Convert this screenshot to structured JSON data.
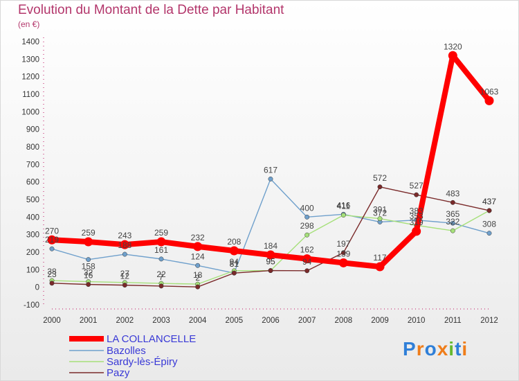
{
  "chart_data": {
    "type": "line",
    "title": "Evolution du Montant de la Dette par Habitant",
    "subtitle": "(en €)",
    "x": [
      "2000",
      "2001",
      "2002",
      "2003",
      "2004",
      "2005",
      "2006",
      "2007",
      "2008",
      "2009",
      "2010",
      "2011",
      "2012"
    ],
    "ylim": [
      -100,
      1400
    ],
    "yticks": [
      -100,
      0,
      100,
      200,
      300,
      400,
      500,
      600,
      700,
      800,
      900,
      1000,
      1100,
      1200,
      1300,
      1400
    ],
    "grid": false,
    "legend": "bottom-left",
    "series": [
      {
        "name": "LA COLLANCELLE",
        "color": "#ff0000",
        "values": [
          270,
          259,
          243,
          259,
          232,
          208,
          184,
          162,
          139,
          117,
          319,
          1320,
          1063
        ]
      },
      {
        "name": "Bazolles",
        "color": "#6fa0cc",
        "values": [
          219,
          158,
          188,
          161,
          124,
          81,
          617,
          400,
          416,
          372,
          383,
          365,
          308
        ]
      },
      {
        "name": "Sardy-lès-Épiry",
        "color": "#a6e07a",
        "values": [
          38,
          32,
          27,
          22,
          18,
          94,
          95,
          298,
          411,
          391,
          353,
          322,
          437
        ]
      },
      {
        "name": "Pazy",
        "color": "#7a2a2a",
        "values": [
          23,
          16,
          12,
          7,
          2,
          81,
          95,
          94,
          197,
          572,
          527,
          483,
          437
        ]
      }
    ]
  },
  "logo": {
    "text": "Proxiti",
    "letters": [
      "P",
      "r",
      "o",
      "x",
      "i",
      "t",
      "i"
    ],
    "colors": [
      "#2f7fd8",
      "#ef7d1a",
      "#2f7fd8",
      "#ef7d1a",
      "#66b92f",
      "#2f7fd8",
      "#ef7d1a"
    ]
  }
}
